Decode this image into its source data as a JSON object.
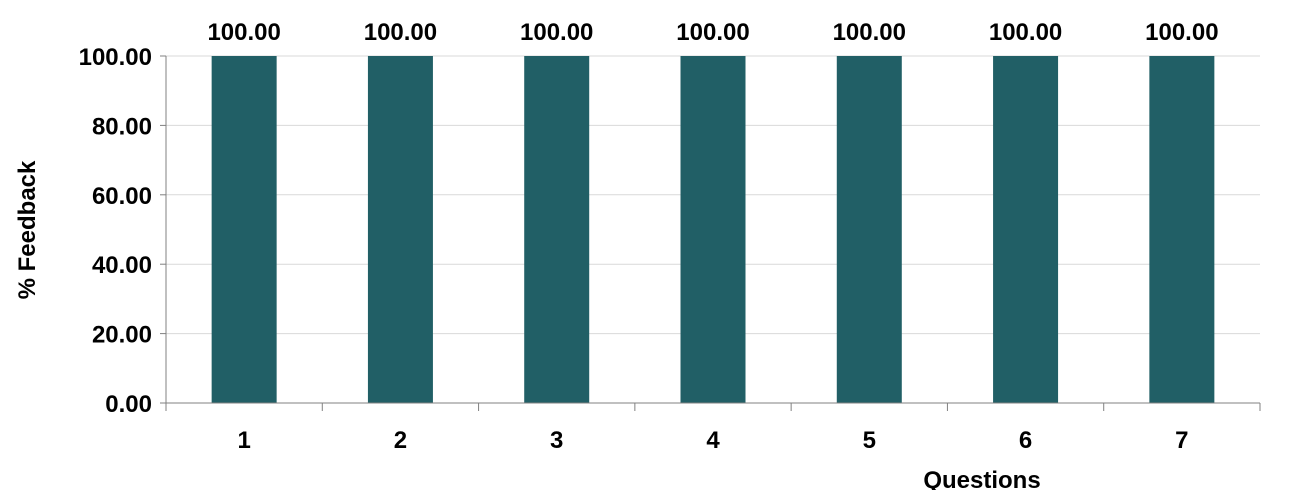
{
  "chart_data": {
    "type": "bar",
    "categories": [
      "1",
      "2",
      "3",
      "4",
      "5",
      "6",
      "7"
    ],
    "values": [
      100.0,
      100.0,
      100.0,
      100.0,
      100.0,
      100.0,
      100.0
    ],
    "data_labels": [
      "100.00",
      "100.00",
      "100.00",
      "100.00",
      "100.00",
      "100.00",
      "100.00"
    ],
    "title": "",
    "xlabel": "Questions",
    "ylabel": "% Feedback",
    "ylim": [
      0,
      100
    ],
    "yticks": [
      0,
      20,
      40,
      60,
      80,
      100
    ],
    "ytick_labels": [
      "0.00",
      "20.00",
      "40.00",
      "60.00",
      "80.00",
      "100.00"
    ],
    "grid": true,
    "legend": "none",
    "colors": {
      "bar": "#215f66",
      "grid": "#d9d9d9",
      "axis": "#808080"
    }
  }
}
